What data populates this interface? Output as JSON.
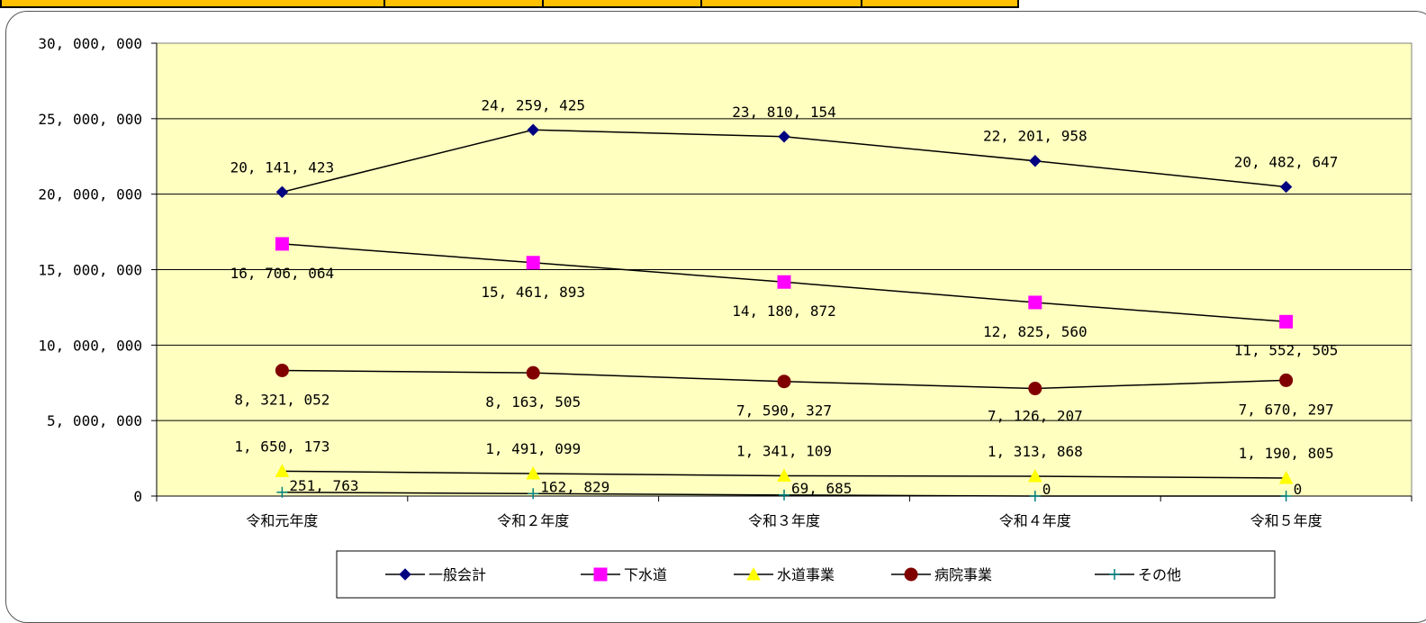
{
  "chart_data": {
    "type": "line",
    "categories": [
      "令和元年度",
      "令和２年度",
      "令和３年度",
      "令和４年度",
      "令和５年度"
    ],
    "ylim": [
      0,
      30000000
    ],
    "yticks": [
      "0",
      "5, 000, 000",
      "10, 000, 000",
      "15, 000, 000",
      "20, 000, 000",
      "25, 000, 000",
      "30, 000, 000"
    ],
    "grid": true,
    "legend_position": "bottom",
    "colors": {
      "plot_bg": "#ffffc0",
      "top_cell": "#ffc000"
    },
    "series": [
      {
        "name": "一般会計",
        "color": "#000080",
        "marker": "diamond",
        "values": [
          20141423,
          24259425,
          23810154,
          22201958,
          20482647
        ],
        "labels": [
          "20, 141, 423",
          "24, 259, 425",
          "23, 810, 154",
          "22, 201, 958",
          "20, 482, 647"
        ]
      },
      {
        "name": "下水道",
        "color": "#ff00ff",
        "marker": "square",
        "values": [
          16706064,
          15461893,
          14180872,
          12825560,
          11552505
        ],
        "labels": [
          "16, 706, 064",
          "15, 461, 893",
          "14, 180, 872",
          "12, 825, 560",
          "11, 552, 505"
        ]
      },
      {
        "name": "水道事業",
        "color": "#ffff00",
        "marker": "triangle",
        "values": [
          1650173,
          1491099,
          1341109,
          1313868,
          1190805
        ],
        "labels": [
          "1, 650, 173",
          "1, 491, 099",
          "1, 341, 109",
          "1, 313, 868",
          "1, 190, 805"
        ]
      },
      {
        "name": "病院事業",
        "color": "#800000",
        "marker": "circle",
        "values": [
          8321052,
          8163505,
          7590327,
          7126207,
          7670297
        ],
        "labels": [
          "8, 321, 052",
          "8, 163, 505",
          "7, 590, 327",
          "7, 126, 207",
          "7, 670, 297"
        ]
      },
      {
        "name": "その他",
        "color": "#008080",
        "marker": "plus",
        "values": [
          251763,
          162829,
          69685,
          0,
          0
        ],
        "labels": [
          "251, 763",
          "162, 829",
          "69, 685",
          "0",
          "0"
        ]
      }
    ]
  }
}
